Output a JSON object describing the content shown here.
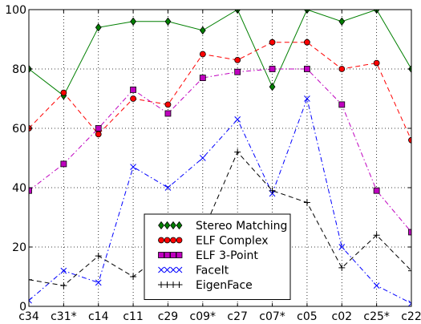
{
  "chart_data": {
    "type": "line",
    "categories": [
      "c34",
      "c31*",
      "c14",
      "c11",
      "c29",
      "c09*",
      "c27",
      "c07*",
      "c05",
      "c02",
      "c25*",
      "c22"
    ],
    "ylim": [
      0,
      100
    ],
    "yticks": [
      0,
      20,
      40,
      60,
      80,
      100
    ],
    "grid": true,
    "legend_position": "bottom-center",
    "series": [
      {
        "name": "Stereo Matching",
        "color": "#007f00",
        "line_style": "solid",
        "marker": "diamond",
        "values": [
          80,
          71,
          94,
          96,
          96,
          93,
          100,
          74,
          100,
          96,
          100,
          80
        ]
      },
      {
        "name": "ELF Complex",
        "color": "#ff0000",
        "line_style": "dashed",
        "marker": "circle",
        "values": [
          60,
          72,
          58,
          70,
          68,
          85,
          83,
          89,
          89,
          80,
          82,
          56
        ]
      },
      {
        "name": "ELF 3-Point",
        "color": "#bf00bf",
        "line_style": "dashdot",
        "marker": "square",
        "values": [
          39,
          48,
          60,
          73,
          65,
          77,
          79,
          80,
          80,
          68,
          39,
          25
        ]
      },
      {
        "name": "FaceIt",
        "color": "#0000ff",
        "line_style": "dashdot",
        "marker": "x",
        "values": [
          2,
          12,
          8,
          47,
          40,
          50,
          63,
          38,
          70,
          20,
          7,
          1
        ]
      },
      {
        "name": "EigenFace",
        "color": "#000000",
        "line_style": "dashed",
        "marker": "plus",
        "values": [
          9,
          7,
          17,
          10,
          19,
          25,
          52,
          39,
          35,
          13,
          24,
          12
        ]
      }
    ]
  }
}
